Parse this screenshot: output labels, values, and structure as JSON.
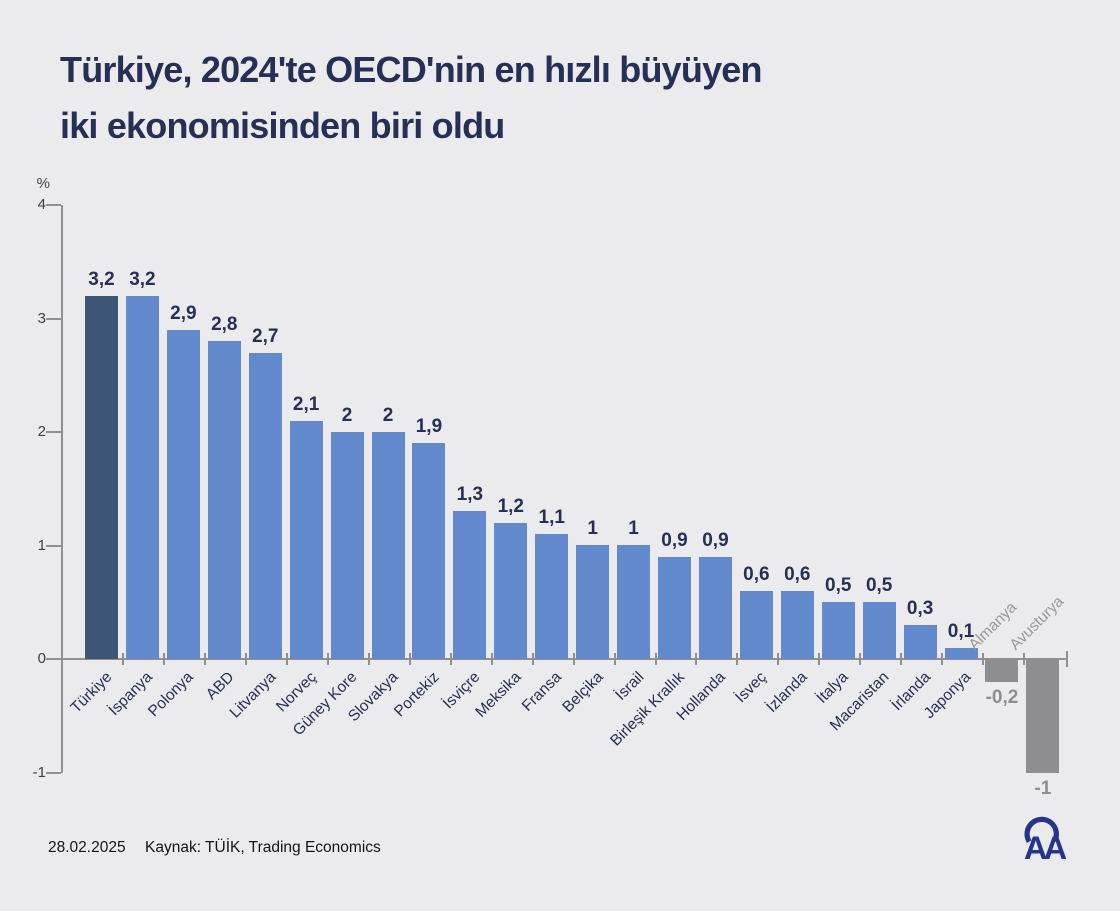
{
  "title": {
    "line1": "Türkiye, 2024'te OECD'nin en hızlı büyüyen",
    "line2": "iki ekonomisinden biri oldu"
  },
  "chart_data": {
    "type": "bar",
    "title": "Türkiye, 2024'te OECD'nin en hızlı büyüyen iki ekonomisinden biri oldu",
    "ylabel": "%",
    "ylim": [
      -1,
      4
    ],
    "y_ticks": [
      4,
      3,
      2,
      1,
      0,
      -1
    ],
    "grid": false,
    "legend": false,
    "categories": [
      "Türkiye",
      "İspanya",
      "Polonya",
      "ABD",
      "Litvanya",
      "Norveç",
      "Güney Kore",
      "Slovakya",
      "Portekiz",
      "İsviçre",
      "Meksika",
      "Fransa",
      "Belçika",
      "İsrail",
      "Birleşik Krallık",
      "Hollanda",
      "İsveç",
      "İzlanda",
      "İtalya",
      "Macaristan",
      "İrlanda",
      "Japonya",
      "Almanya",
      "Avusturya"
    ],
    "values": [
      3.2,
      3.2,
      2.9,
      2.8,
      2.7,
      2.1,
      2,
      2,
      1.9,
      1.3,
      1.2,
      1.1,
      1,
      1,
      0.9,
      0.9,
      0.6,
      0.6,
      0.5,
      0.5,
      0.3,
      0.1,
      -0.2,
      -1
    ],
    "value_labels": [
      "3,2",
      "3,2",
      "2,9",
      "2,8",
      "2,7",
      "2,1",
      "2",
      "2",
      "1,9",
      "1,3",
      "1,2",
      "1,1",
      "1",
      "1",
      "0,9",
      "0,9",
      "0,6",
      "0,6",
      "0,5",
      "0,5",
      "0,3",
      "0,1",
      "-0,2",
      "-1"
    ],
    "colors": {
      "background": "#EBEBED",
      "highlight_bar": "#3E5676",
      "positive_bar": "#6289CB",
      "negative_bar": "#8E8E91",
      "title_text": "#262F55",
      "value_text": "#262F55",
      "negative_text": "#8E8E91",
      "negative_category_text": "#97979B",
      "axis": "#8F9096",
      "tick_label": "#3B404B",
      "logo_blue": "#26348B"
    }
  },
  "footer": {
    "date": "28.02.2025",
    "source": "Kaynak: TÜİK, Trading Economics"
  },
  "logo": {
    "name": "Anadolu Ajansı",
    "text": "AA"
  }
}
